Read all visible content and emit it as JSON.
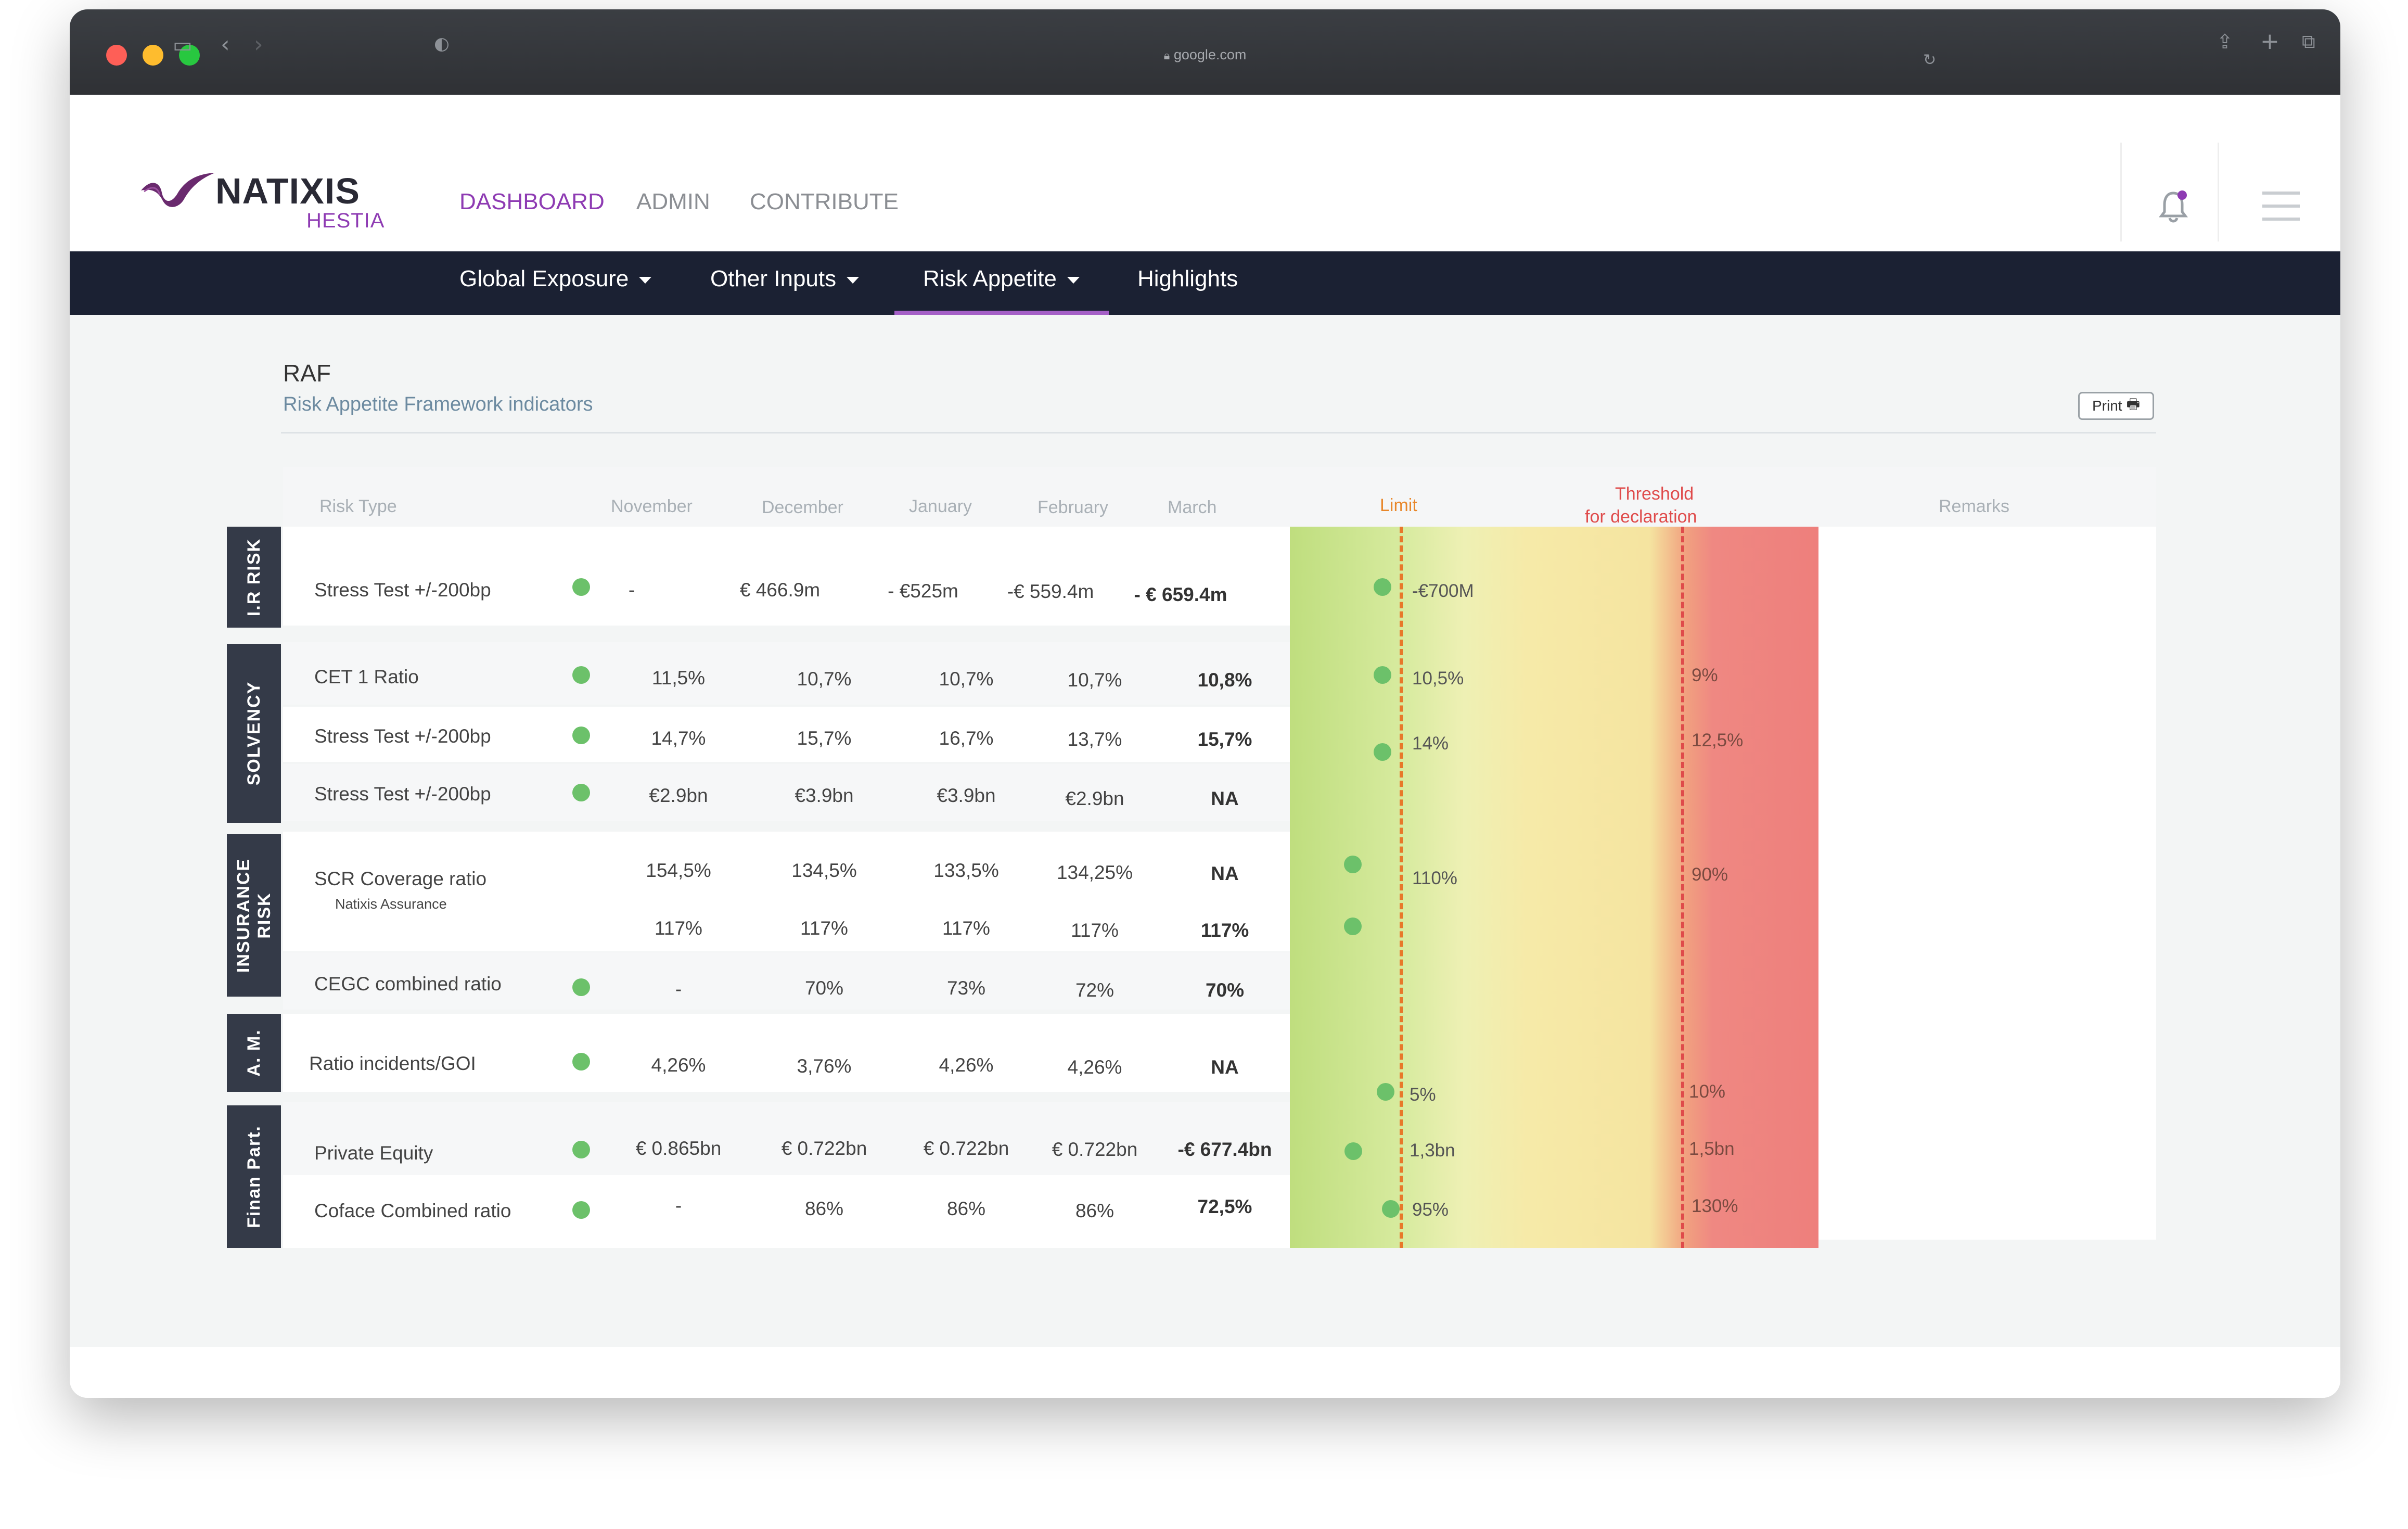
{
  "browser": {
    "url": "google.com"
  },
  "brand": {
    "name": "NATIXIS",
    "product": "HESTIA"
  },
  "main_nav": [
    "DASHBOARD",
    "ADMIN",
    "CONTRIBUTE"
  ],
  "sub_nav": [
    "Global Exposure",
    "Other Inputs",
    "Risk Appetite",
    "Highlights"
  ],
  "page": {
    "title": "RAF",
    "subtitle": "Risk Appetite Framework indicators",
    "print_label": "Print"
  },
  "table": {
    "headers": {
      "risk_type": "Risk Type",
      "months": [
        "November",
        "December",
        "January",
        "February",
        "March"
      ],
      "limit": "Limit",
      "threshold_line1": "Threshold",
      "threshold_line2": "for declaration",
      "remarks": "Remarks"
    },
    "groups": {
      "ir": "I.R RISK",
      "solvency": "SOLVENCY",
      "insurance_l1": "INSURANCE",
      "insurance_l2": "RISK",
      "am": "A. M.",
      "finan": "Finan Part."
    },
    "rows": [
      {
        "name": "Stress Test +/-200bp",
        "values": [
          "-",
          "€ 466.9m",
          "- €525m",
          "-€ 559.4m",
          "- € 659.4m"
        ],
        "limit": "-€700M",
        "threshold": ""
      },
      {
        "name": "CET 1 Ratio",
        "values": [
          "11,5%",
          "10,7%",
          "10,7%",
          "10,7%",
          "10,8%"
        ],
        "limit": "10,5%",
        "threshold": "9%"
      },
      {
        "name": "Stress Test +/-200bp",
        "values": [
          "14,7%",
          "15,7%",
          "16,7%",
          "13,7%",
          "15,7%"
        ],
        "limit": "14%",
        "threshold": "12,5%"
      },
      {
        "name": "Stress Test +/-200bp",
        "values": [
          "€2.9bn",
          "€3.9bn",
          "€3.9bn",
          "€2.9bn",
          "NA"
        ],
        "limit": "",
        "threshold": ""
      },
      {
        "name": "SCR Coverage ratio",
        "sub": "Natixis Assurance",
        "values": [
          "154,5%",
          "134,5%",
          "133,5%",
          "134,25%",
          "NA"
        ],
        "values2": [
          "117%",
          "117%",
          "117%",
          "117%",
          "117%"
        ],
        "limit": "110%",
        "threshold": "90%"
      },
      {
        "name": "CEGC combined ratio",
        "values": [
          "-",
          "70%",
          "73%",
          "72%",
          "70%"
        ],
        "limit": "",
        "threshold": ""
      },
      {
        "name": "Ratio incidents/GOI",
        "values": [
          "4,26%",
          "3,76%",
          "4,26%",
          "4,26%",
          "NA"
        ],
        "limit": "5%",
        "threshold": "10%"
      },
      {
        "name": "Private Equity",
        "values": [
          "€ 0.865bn",
          "€ 0.722bn",
          "€ 0.722bn",
          "€ 0.722bn",
          "-€ 677.4bn"
        ],
        "limit": "1,3bn",
        "threshold": "1,5bn"
      },
      {
        "name": "Coface Combined ratio",
        "values": [
          "-",
          "86%",
          "86%",
          "86%",
          "72,5%"
        ],
        "limit": "95%",
        "threshold": "130%"
      }
    ]
  },
  "colors": {
    "accent": "#8e3bb3",
    "navbar": "#1b2133",
    "status_ok": "#6cc16a",
    "limit_line": "#e8782a",
    "threshold_line": "#df4b4b"
  }
}
